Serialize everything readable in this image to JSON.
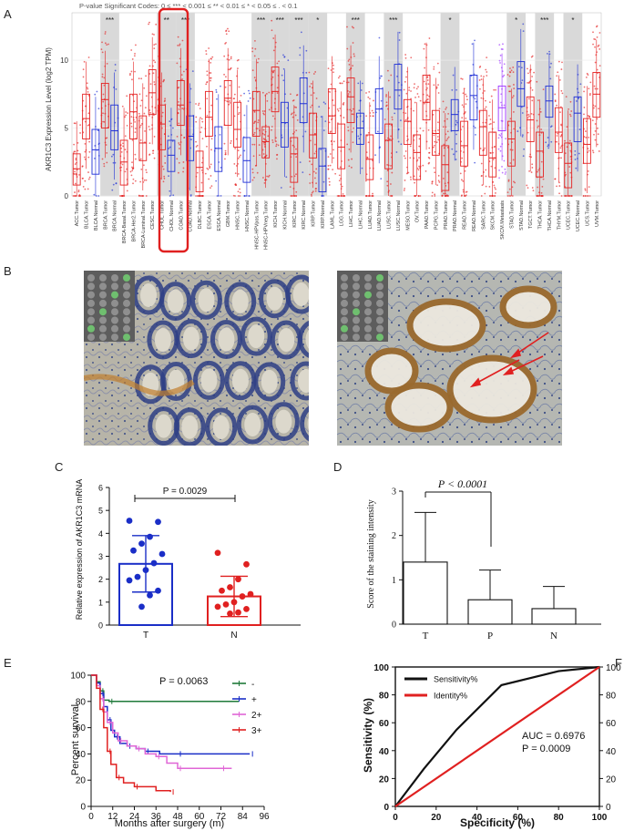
{
  "panel_letters": {
    "a": "A",
    "b": "B",
    "c": "C",
    "d": "D",
    "e": "E",
    "f": "F"
  },
  "panel_a": {
    "header": "P-value Significant Codes: 0 ≤ *** < 0.001 ≤ ** < 0.01 ≤ * < 0.05 ≤ . < 0.1",
    "ylabel": "AKR1C3 Expression Level (log2 TPM)",
    "yticks": [
      "0",
      "5",
      "10"
    ],
    "categories": [
      "ACC.Tumor",
      "BLCA.Tumor",
      "BLCA.Normal",
      "BRCA.Tumor",
      "BRCA.Normal",
      "BRCA-Basal.Tumor",
      "BRCA-Her2.Tumor",
      "BRCA-Luminal.Tumor",
      "CESC.Tumor",
      "CHOL.Tumor",
      "CHOL.Normal",
      "COAD.Tumor",
      "COAD.Normal",
      "DLBC.Tumor",
      "ESCA.Tumor",
      "ESCA.Normal",
      "GBM.Tumor",
      "HNSC.Tumor",
      "HNSC.Normal",
      "HNSC-HPVpos.Tumor",
      "HNSC-HPVneg.Tumor",
      "KICH.Tumor",
      "KICH.Normal",
      "KIRC.Tumor",
      "KIRC.Normal",
      "KIRP.Tumor",
      "KIRP.Normal",
      "LAML.Tumor",
      "LGG.Tumor",
      "LIHC.Tumor",
      "LIHC.Normal",
      "LUAD.Tumor",
      "LUAD.Normal",
      "LUSC.Tumor",
      "LUSC.Normal",
      "MESO.Tumor",
      "OV.Tumor",
      "PAAD.Tumor",
      "PCPG.Tumor",
      "PRAD.Tumor",
      "PRAD.Normal",
      "READ.Tumor",
      "READ.Normal",
      "SARC.Tumor",
      "SKCM.Tumor",
      "SKCM.Metastasis",
      "STAD.Tumor",
      "STAD.Normal",
      "TGCT.Tumor",
      "THCA.Tumor",
      "THCA.Normal",
      "THYM.Tumor",
      "UCEC.Tumor",
      "UCEC.Normal",
      "UCS.Tumor",
      "UVM.Tumor"
    ],
    "sig_marks": [
      {
        "index": 3,
        "label": "***"
      },
      {
        "index": 9,
        "label": "**"
      },
      {
        "index": 11,
        "label": "***"
      },
      {
        "index": 19,
        "label": "***"
      },
      {
        "index": 21,
        "label": "***"
      },
      {
        "index": 23,
        "label": "***"
      },
      {
        "index": 25,
        "label": "*"
      },
      {
        "index": 29,
        "label": "***"
      },
      {
        "index": 33,
        "label": "***"
      },
      {
        "index": 39,
        "label": "*"
      },
      {
        "index": 46,
        "label": "*"
      },
      {
        "index": 49,
        "label": "***"
      },
      {
        "index": 52,
        "label": "*"
      }
    ]
  },
  "chart_data": [
    {
      "type": "bar",
      "panel": "C",
      "categories": [
        "T",
        "N"
      ],
      "values": [
        2.67,
        1.25
      ],
      "errors": [
        1.23,
        0.88
      ],
      "ylabel": "Relative expression of AKR1C3 mRNA",
      "ylim": [
        0,
        6
      ],
      "yticks": [
        "0",
        "1",
        "2",
        "3",
        "4",
        "5",
        "6"
      ],
      "annotation": "P = 0.0029",
      "points": {
        "T": [
          4.55,
          4.5,
          3.85,
          3.55,
          3.25,
          3.1,
          2.7,
          2.4,
          2.1,
          1.95,
          1.5,
          1.3,
          0.8
        ],
        "N": [
          3.15,
          2.65,
          2.0,
          1.65,
          1.5,
          1.35,
          1.25,
          1.0,
          0.9,
          0.8,
          0.7,
          0.55,
          0.5
        ]
      },
      "colors": {
        "T": "#1a2ec7",
        "N": "#e02020"
      }
    },
    {
      "type": "bar",
      "panel": "D",
      "categories": [
        "T",
        "P",
        "N"
      ],
      "values": [
        1.4,
        0.55,
        0.35
      ],
      "errors": [
        1.12,
        0.67,
        0.5
      ],
      "ylabel": "Score of the staining intensity",
      "ylim": [
        0,
        3
      ],
      "yticks": [
        "0",
        "1",
        "2",
        "3"
      ],
      "annotation": "P < 0.0001"
    },
    {
      "type": "line",
      "panel": "E",
      "xlabel": "Months after surgery (m)",
      "ylabel": "Percent survival",
      "xlim": [
        0,
        96
      ],
      "ylim": [
        0,
        100
      ],
      "xticks": [
        "0",
        "12",
        "24",
        "36",
        "48",
        "60",
        "72",
        "84",
        "96"
      ],
      "yticks": [
        "0",
        "20",
        "40",
        "60",
        "80",
        "100"
      ],
      "annotation": "P = 0.0063",
      "series": [
        {
          "name": "-",
          "color": "#1f7a3a",
          "x": [
            0,
            3,
            5,
            7,
            10,
            82
          ],
          "y": [
            100,
            95,
            88,
            81,
            80,
            80
          ]
        },
        {
          "name": "+",
          "color": "#1a2ec7",
          "x": [
            0,
            3,
            5,
            7,
            9,
            11,
            13,
            16,
            20,
            25,
            30,
            38,
            48,
            60,
            88
          ],
          "y": [
            100,
            94,
            86,
            76,
            66,
            58,
            53,
            48,
            46,
            44,
            42,
            40,
            40,
            40,
            40
          ]
        },
        {
          "name": "2+",
          "color": "#e066d6",
          "x": [
            0,
            3,
            5,
            7,
            9,
            12,
            15,
            20,
            25,
            30,
            36,
            42,
            48,
            60,
            72,
            78
          ],
          "y": [
            100,
            92,
            82,
            72,
            64,
            56,
            50,
            46,
            44,
            40,
            38,
            33,
            29,
            29,
            29,
            29
          ]
        },
        {
          "name": "3+",
          "color": "#e02020",
          "x": [
            0,
            3,
            5,
            7,
            9,
            11,
            14,
            18,
            24,
            36,
            44
          ],
          "y": [
            100,
            90,
            74,
            60,
            42,
            32,
            22,
            18,
            15,
            12,
            11
          ]
        }
      ]
    },
    {
      "type": "line",
      "panel": "F",
      "xlabel": "Specificity (%)",
      "ylabel": "Sensitivity (%)",
      "xlim": [
        0,
        100
      ],
      "ylim": [
        0,
        100
      ],
      "xticks": [
        "0",
        "20",
        "40",
        "60",
        "80",
        "100"
      ],
      "yticks": [
        "0",
        "20",
        "40",
        "60",
        "80",
        "100"
      ],
      "annotation": [
        "AUC = 0.6976",
        "P = 0.0009"
      ],
      "series": [
        {
          "name": "Sensitivity%",
          "color": "#111111",
          "x": [
            0,
            14,
            30,
            52,
            80,
            100
          ],
          "y": [
            0,
            27,
            55,
            87,
            97,
            100
          ]
        },
        {
          "name": "Identity%",
          "color": "#e02020",
          "x": [
            0,
            100
          ],
          "y": [
            0,
            100
          ]
        }
      ]
    }
  ]
}
